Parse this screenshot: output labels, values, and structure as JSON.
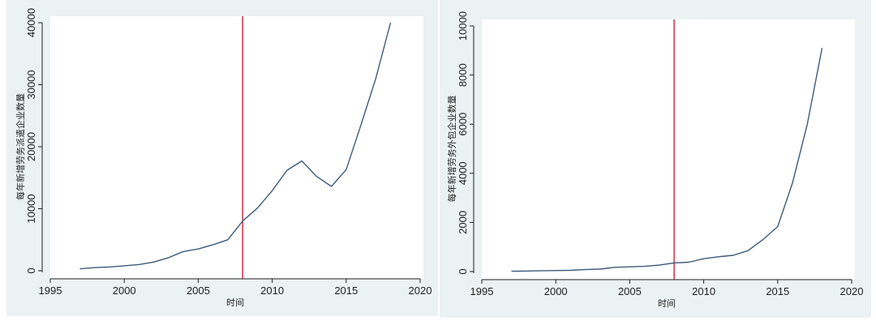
{
  "colors": {
    "panel_bg": "#eaf2f3",
    "plot_bg": "#ffffff",
    "line": "#3d5a7a",
    "vline": "#c8102e",
    "axis": "#1f1f1f"
  },
  "chart_data": [
    {
      "type": "line",
      "xlabel": "时间",
      "ylabel": "每年新增劳务派遣企业数量",
      "xlim": [
        1995,
        2020
      ],
      "ylim": [
        0,
        40000
      ],
      "xticks": [
        "1995",
        "2000",
        "2005",
        "2010",
        "2015",
        "2020"
      ],
      "yticks": [
        "0",
        "10000",
        "20000",
        "30000",
        "40000"
      ],
      "grid": false,
      "vline": 2008,
      "series": [
        {
          "x": [
            1997,
            1998,
            1999,
            2000,
            2001,
            2002,
            2003,
            2004,
            2005,
            2006,
            2007,
            2008,
            2009,
            2010,
            2011,
            2012,
            2013,
            2014,
            2015,
            2016,
            2017,
            2018
          ],
          "values": [
            300,
            500,
            600,
            800,
            1000,
            1400,
            2100,
            3100,
            3500,
            4200,
            5000,
            8000,
            10100,
            12900,
            16200,
            17700,
            15200,
            13600,
            16300,
            23500,
            31000,
            40000
          ]
        }
      ]
    },
    {
      "type": "line",
      "xlabel": "时间",
      "ylabel": "每年新增劳务外包企业数量",
      "xlim": [
        1995,
        2020
      ],
      "ylim": [
        0,
        10000
      ],
      "xticks": [
        "1995",
        "2000",
        "2005",
        "2010",
        "2015",
        "2020"
      ],
      "yticks": [
        "0",
        "2000",
        "4000",
        "6000",
        "8000",
        "10000"
      ],
      "grid": false,
      "vline": 2008,
      "series": [
        {
          "x": [
            1997,
            1998,
            1999,
            2000,
            2001,
            2002,
            2003,
            2004,
            2005,
            2006,
            2007,
            2008,
            2009,
            2010,
            2011,
            2012,
            2013,
            2014,
            2015,
            2016,
            2017,
            2018
          ],
          "values": [
            10,
            20,
            30,
            40,
            50,
            80,
            100,
            170,
            190,
            210,
            260,
            350,
            380,
            520,
            600,
            660,
            850,
            1300,
            1830,
            3600,
            6000,
            9100
          ]
        }
      ]
    }
  ]
}
